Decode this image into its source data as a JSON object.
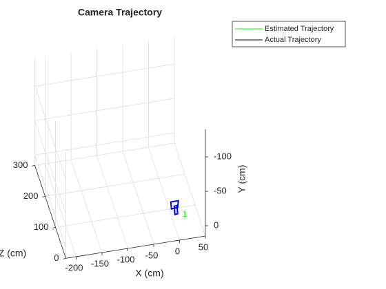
{
  "chart_data": {
    "type": "line3d",
    "title": "Camera Trajectory",
    "xlabel": "X (cm)",
    "ylabel": "Y (cm)",
    "zlabel": "Z (cm)",
    "xlim": [
      -220,
      50
    ],
    "ylim": [
      -140,
      15
    ],
    "zlim": [
      0,
      300
    ],
    "xticks": [
      -200,
      -150,
      -100,
      -50,
      0,
      50
    ],
    "yticks": [
      -100,
      -50,
      0
    ],
    "zticks": [
      0,
      100,
      200,
      300
    ],
    "grid": true,
    "legend": "top-right",
    "series": [
      {
        "name": "Estimated Trajectory",
        "color": "#00ff00",
        "x": [
          -5
        ],
        "y": [
          -20
        ],
        "z": [
          20
        ]
      },
      {
        "name": "Actual Trajectory",
        "color": "#000000",
        "x": [
          -5
        ],
        "y": [
          -20
        ],
        "z": [
          20
        ]
      }
    ],
    "annotations": [
      {
        "text": "1",
        "color": "#00ff00"
      }
    ]
  }
}
